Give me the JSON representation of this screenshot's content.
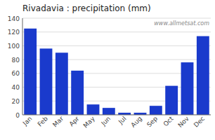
{
  "chart_data": {
    "type": "bar",
    "title": "Rivadavia : precipitation (mm)",
    "categories": [
      "Jan",
      "Feb",
      "Mar",
      "Apr",
      "May",
      "Jun",
      "Jul",
      "Aug",
      "Sep",
      "Oct",
      "Nov",
      "Dec"
    ],
    "values": [
      125,
      96,
      90,
      64,
      15,
      10,
      3,
      3,
      13,
      42,
      76,
      114
    ],
    "color": "#1a3acc",
    "ylim": [
      0,
      140
    ],
    "yticks": [
      0,
      20,
      40,
      60,
      80,
      100,
      120,
      140
    ],
    "grid": true,
    "annotation": "www.allmetsat.com"
  }
}
